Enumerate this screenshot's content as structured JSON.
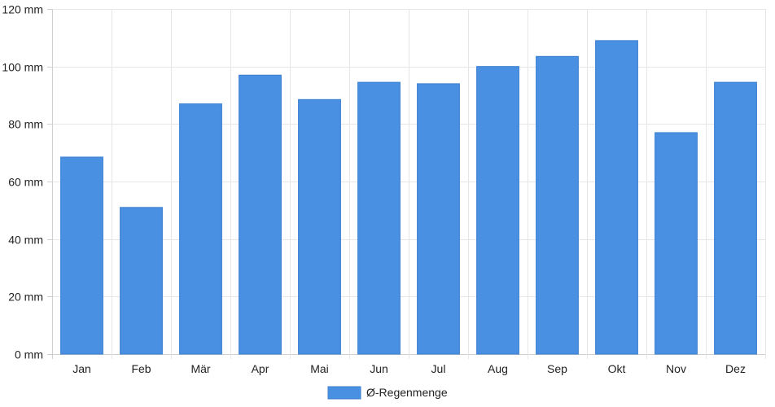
{
  "chart_data": {
    "type": "bar",
    "categories": [
      "Jan",
      "Feb",
      "Mär",
      "Apr",
      "Mai",
      "Jun",
      "Jul",
      "Aug",
      "Sep",
      "Okt",
      "Nov",
      "Dez"
    ],
    "series": [
      {
        "name": "Ø-Regenmenge",
        "values": [
          68.5,
          51,
          87,
          97,
          88.5,
          94.5,
          94,
          100,
          103.5,
          109,
          77,
          94.5
        ],
        "color": "#4a90e2"
      }
    ],
    "ylim": [
      0,
      120
    ],
    "yticks": [
      0,
      20,
      40,
      60,
      80,
      100,
      120
    ],
    "ytick_suffix": " mm",
    "grid": true,
    "legend_position": "bottom-center"
  }
}
